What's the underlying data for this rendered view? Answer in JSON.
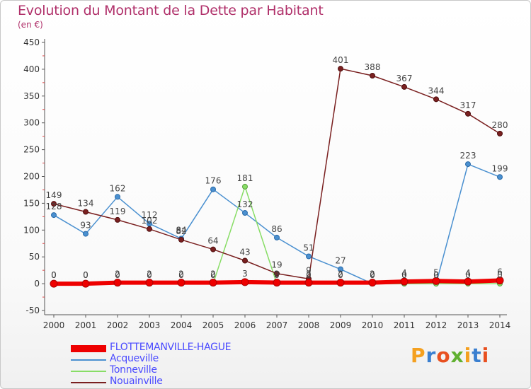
{
  "header": {
    "title": "Evolution du Montant de la Dette par Habitant",
    "subtitle": "(en €)"
  },
  "logo": {
    "text": "Proxiti",
    "colors": [
      "#f4a020",
      "#3a7fd0",
      "#e85020",
      "#60b030",
      "#f4a020",
      "#3a7fd0",
      "#e85020"
    ]
  },
  "chart_data": {
    "type": "line",
    "title": "Evolution du Montant de la Dette par Habitant",
    "subtitle": "(en €)",
    "x": [
      2000,
      2001,
      2002,
      2003,
      2004,
      2005,
      2006,
      2007,
      2008,
      2009,
      2010,
      2011,
      2012,
      2013,
      2014
    ],
    "ylim": [
      -50,
      450
    ],
    "yticks": [
      -50,
      0,
      50,
      100,
      150,
      200,
      250,
      300,
      350,
      400,
      450
    ],
    "grid": false,
    "legend_position": "bottom-left",
    "series": [
      {
        "name": "FLOTTEMANVILLE-HAGUE",
        "color": "#ee0000",
        "values": [
          0,
          0,
          2,
          2,
          2,
          2,
          3,
          2,
          2,
          2,
          2,
          4,
          5,
          4,
          6
        ],
        "labels": [
          "0",
          "0",
          "2",
          "2",
          "2",
          "2",
          "3",
          "2",
          "2",
          "2",
          "2",
          "4",
          "5",
          "4",
          "6"
        ]
      },
      {
        "name": "Acqueville",
        "color": "#4a90d0",
        "values": [
          128,
          93,
          162,
          112,
          84,
          176,
          132,
          86,
          51,
          27,
          0,
          0,
          0,
          223,
          199
        ],
        "labels": [
          "128",
          "93",
          "162",
          "112",
          "84",
          "176",
          "132",
          "86",
          "51",
          "27",
          "0",
          "0",
          "0",
          "223",
          "199"
        ]
      },
      {
        "name": "Tonneville",
        "color": "#88dd66",
        "values": [
          0,
          0,
          0,
          0,
          0,
          0,
          181,
          0,
          0,
          0,
          0,
          0,
          0,
          0,
          0
        ],
        "labels": [
          "0",
          "0",
          "0",
          "0",
          "0",
          "0",
          "181",
          "0",
          "0",
          "0",
          "0",
          "0",
          "0",
          "0",
          "0"
        ]
      },
      {
        "name": "Nouainville",
        "color": "#7a2020",
        "values": [
          149,
          134,
          119,
          102,
          82,
          64,
          43,
          19,
          9,
          401,
          388,
          367,
          344,
          317,
          280
        ],
        "labels": [
          "149",
          "134",
          "119",
          "102",
          "82",
          "64",
          "43",
          "19",
          "9",
          "401",
          "388",
          "367",
          "344",
          "317",
          "280"
        ]
      }
    ]
  }
}
